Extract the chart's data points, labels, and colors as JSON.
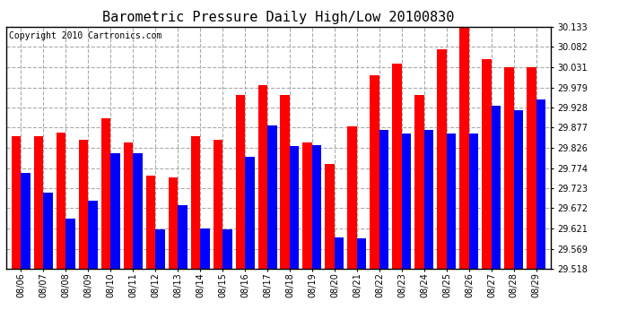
{
  "title": "Barometric Pressure Daily High/Low 20100830",
  "copyright": "Copyright 2010 Cartronics.com",
  "dates": [
    "08/06",
    "08/07",
    "08/08",
    "08/09",
    "08/10",
    "08/11",
    "08/12",
    "08/13",
    "08/14",
    "08/15",
    "08/16",
    "08/17",
    "08/18",
    "08/19",
    "08/20",
    "08/21",
    "08/22",
    "08/23",
    "08/24",
    "08/25",
    "08/26",
    "08/27",
    "08/28",
    "08/29"
  ],
  "highs": [
    29.855,
    29.855,
    29.865,
    29.845,
    29.9,
    29.84,
    29.755,
    29.75,
    29.855,
    29.845,
    29.96,
    29.985,
    29.96,
    29.84,
    29.785,
    29.88,
    30.01,
    30.04,
    29.96,
    30.075,
    30.133,
    30.05,
    30.03,
    30.03
  ],
  "lows": [
    29.762,
    29.712,
    29.645,
    29.692,
    29.812,
    29.812,
    29.618,
    29.68,
    29.62,
    29.618,
    29.802,
    29.882,
    29.83,
    29.832,
    29.598,
    29.595,
    29.872,
    29.862,
    29.872,
    29.862,
    29.862,
    29.932,
    29.922,
    29.948
  ],
  "ylim_min": 29.518,
  "ylim_max": 30.133,
  "yticks": [
    29.518,
    29.569,
    29.621,
    29.672,
    29.723,
    29.774,
    29.826,
    29.877,
    29.928,
    29.979,
    30.031,
    30.082,
    30.133
  ],
  "bar_width": 0.42,
  "high_color": "#ff0000",
  "low_color": "#0000ff",
  "bg_color": "#ffffff",
  "grid_color": "#aaaaaa",
  "title_fontsize": 11,
  "tick_fontsize": 7,
  "copyright_fontsize": 7
}
